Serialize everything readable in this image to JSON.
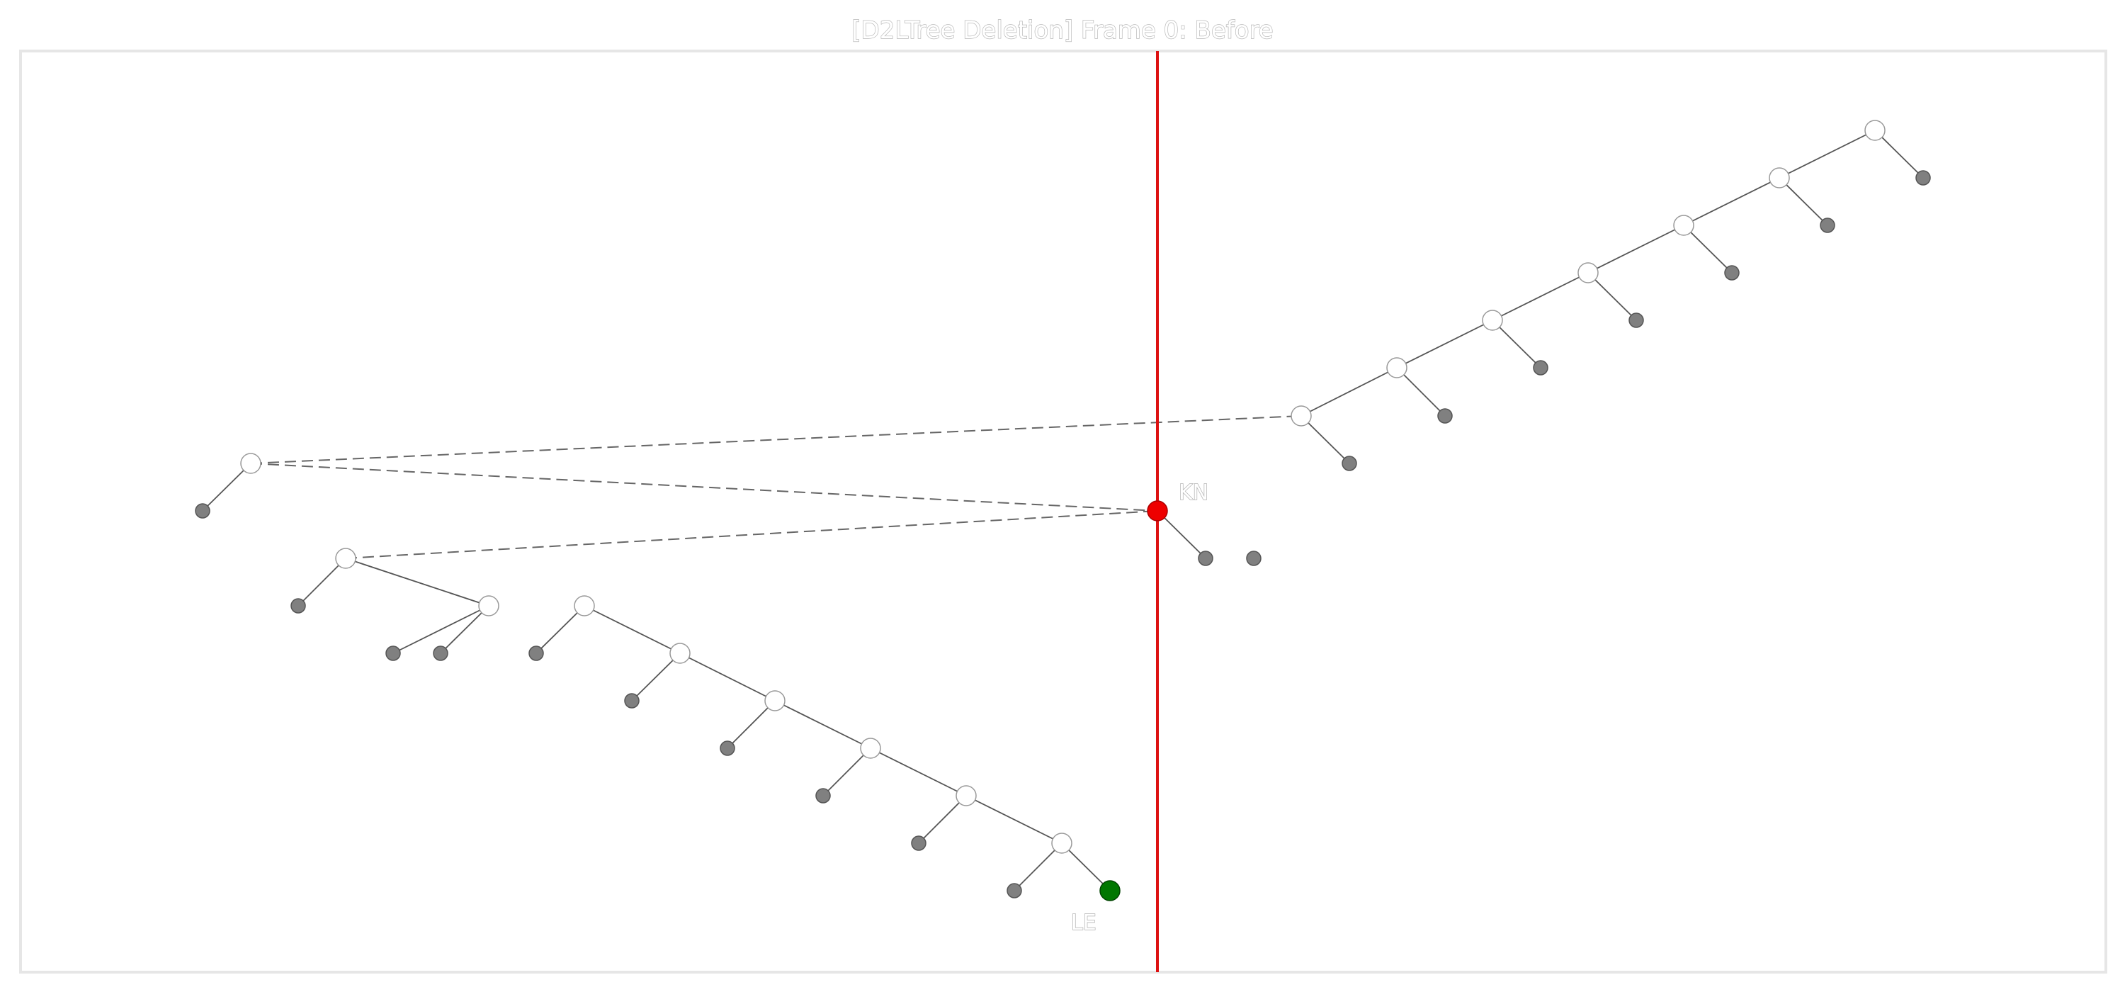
{
  "title": "[D2LTree Deletion] Frame 0: Before",
  "colors": {
    "frame": "#e6e6e6",
    "edge": "#555555",
    "dashed": "#666666",
    "internal_fill": "#ffffff",
    "internal_stroke": "#999999",
    "leaf_fill": "#808080",
    "leaf_stroke": "#555555",
    "kn_fill": "#ee0000",
    "le_fill": "#007700",
    "guide_line": "#dd1111"
  },
  "labels": {
    "kn": "KN",
    "le": "LE"
  }
}
